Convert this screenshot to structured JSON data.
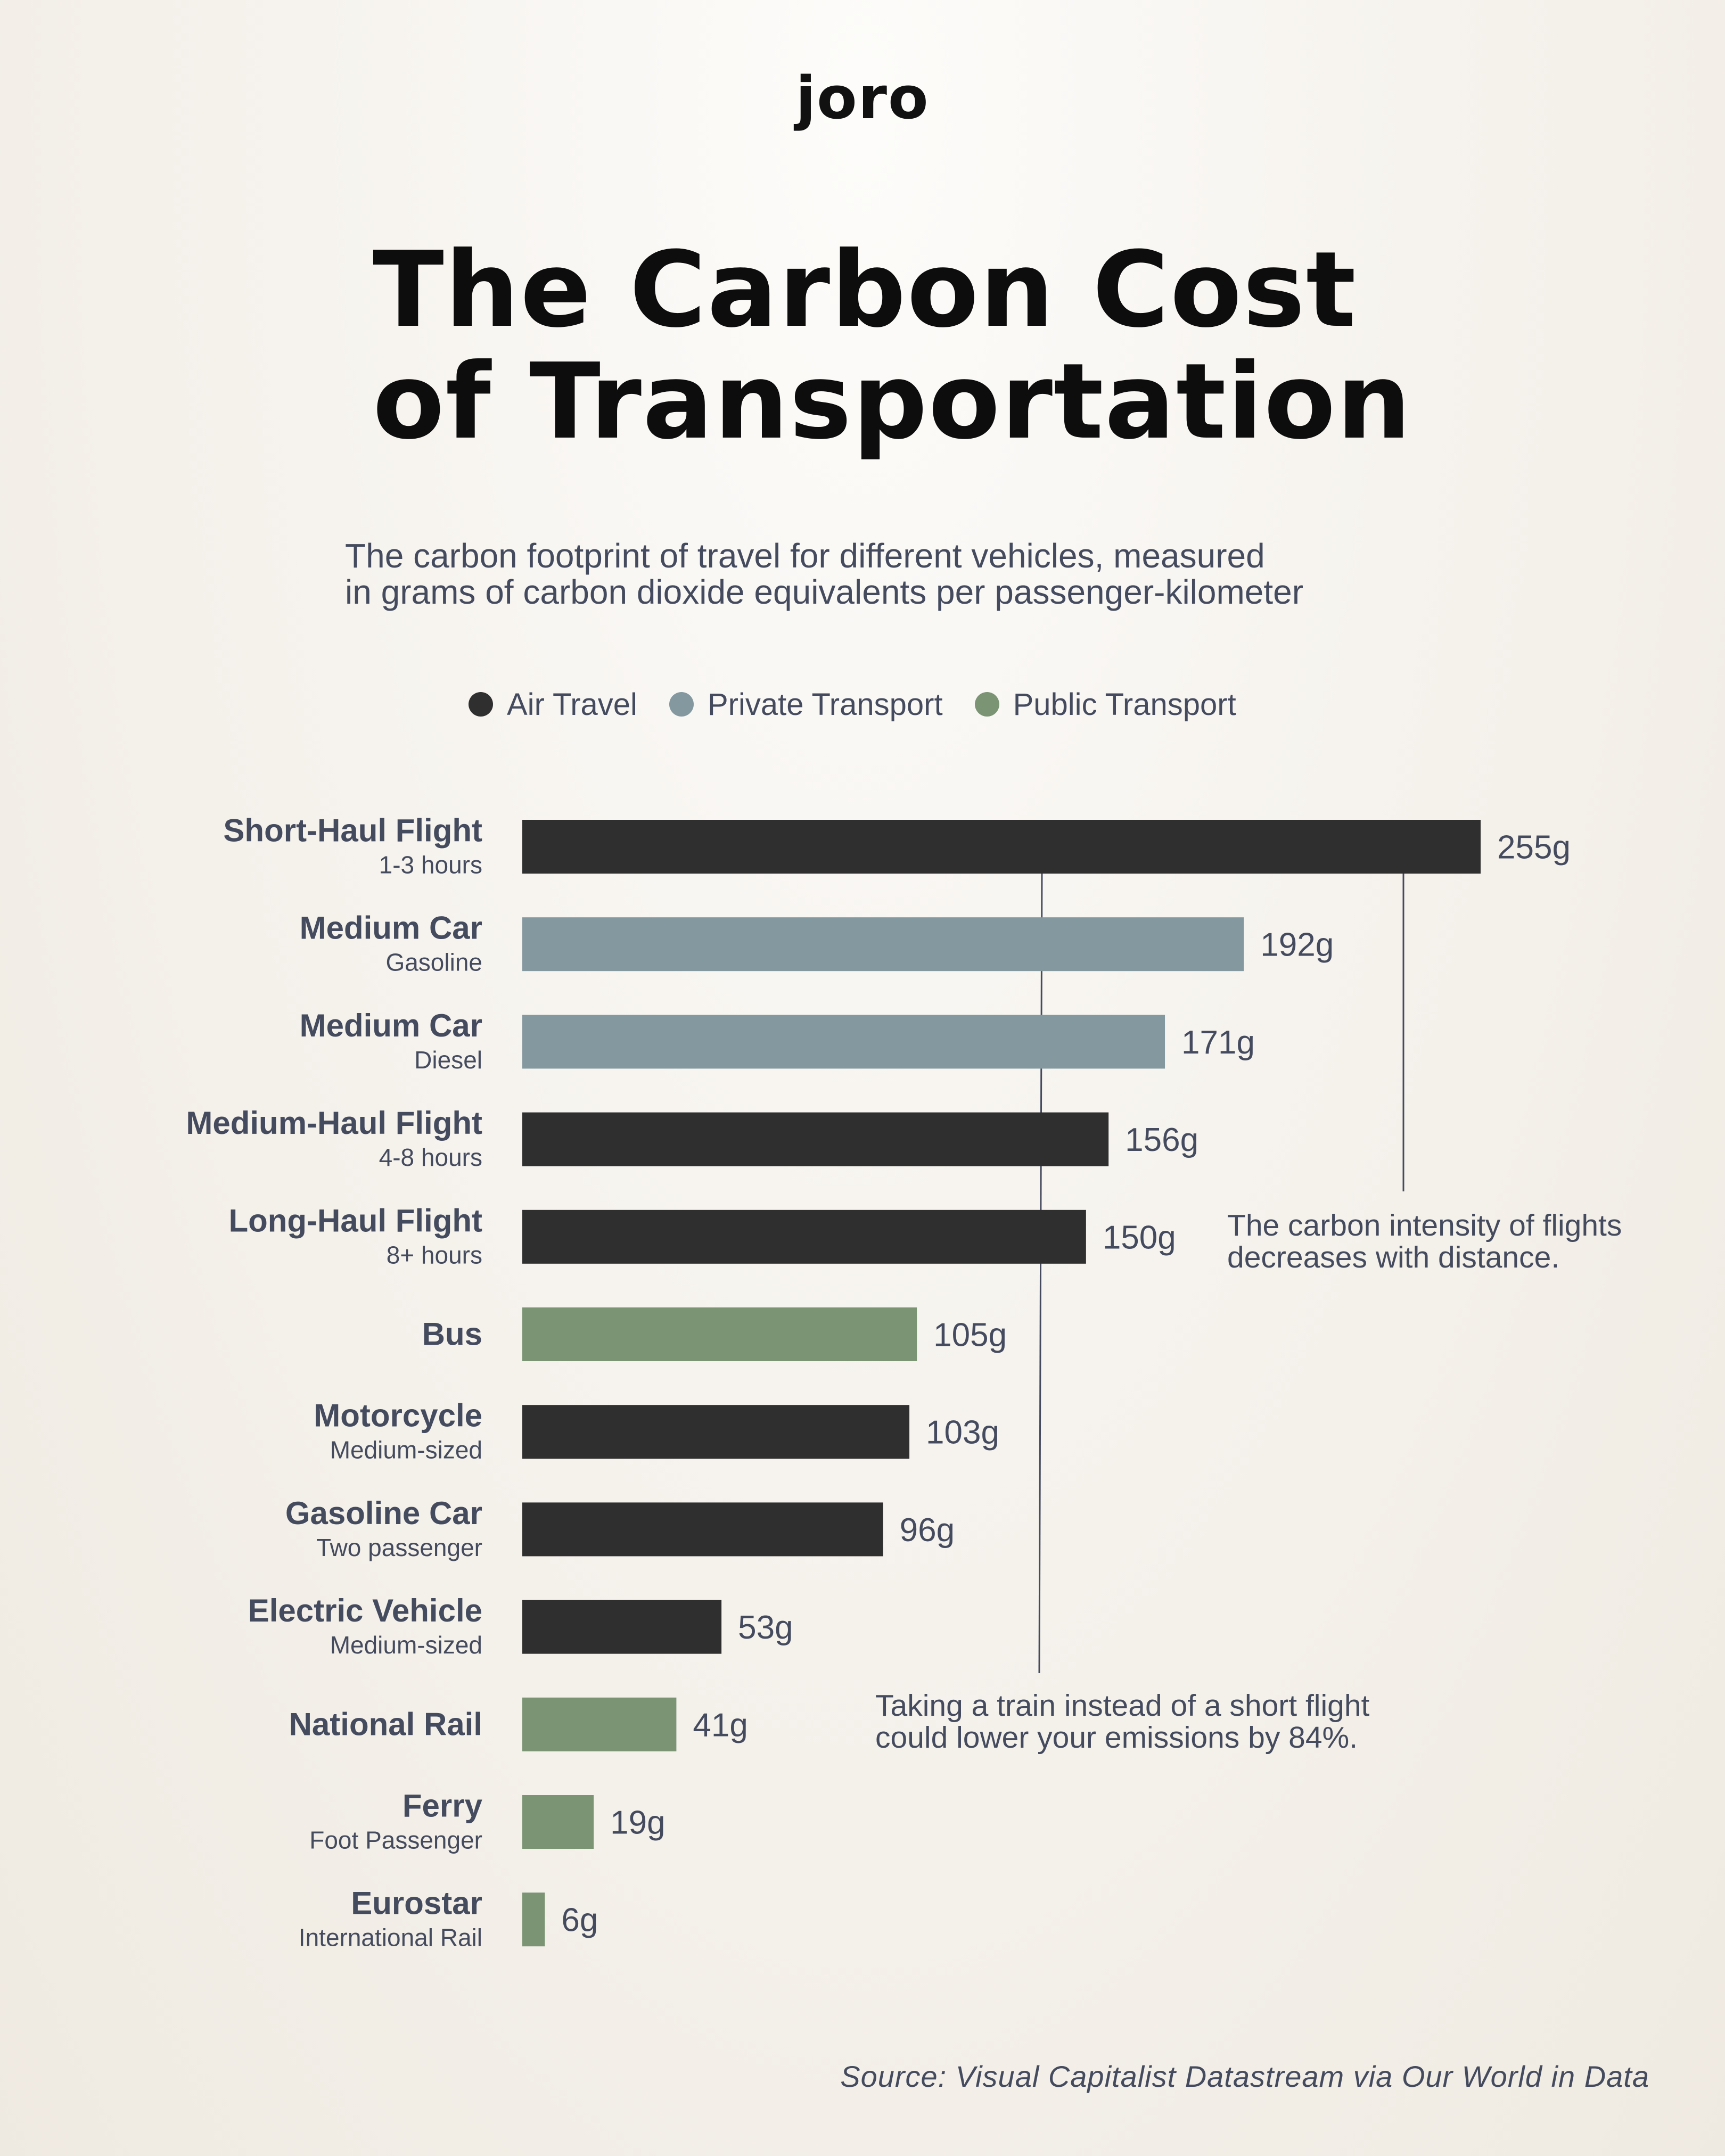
{
  "brand": {
    "logo": "joro"
  },
  "header": {
    "title_line1": "The Carbon Cost",
    "title_line2": "of Transportation",
    "subtitle_line1": "The carbon footprint of travel for different vehicles, measured",
    "subtitle_line2": "in grams of carbon dioxide equivalents per passenger-kilometer"
  },
  "legend": [
    {
      "label": "Air Travel",
      "color": "#2f2f2f"
    },
    {
      "label": "Private Transport",
      "color": "#83989f"
    },
    {
      "label": "Public Transport",
      "color": "#7b9474"
    }
  ],
  "chart_data": {
    "type": "bar",
    "orientation": "horizontal",
    "title": "The Carbon Cost of Transportation",
    "unit": "g CO2e per passenger-km",
    "xlim": [
      0,
      255
    ],
    "grid": false,
    "legend_position": "top",
    "categories": [
      {
        "name": "Short-Haul Flight",
        "sub": "1-3 hours",
        "value": 255,
        "label": "255g",
        "color": "#2f2f2f"
      },
      {
        "name": "Medium Car",
        "sub": "Gasoline",
        "value": 192,
        "label": "192g",
        "color": "#83989f"
      },
      {
        "name": "Medium Car",
        "sub": "Diesel",
        "value": 171,
        "label": "171g",
        "color": "#83989f"
      },
      {
        "name": "Medium-Haul Flight",
        "sub": "4-8 hours",
        "value": 156,
        "label": "156g",
        "color": "#2f2f2f"
      },
      {
        "name": "Long-Haul Flight",
        "sub": "8+ hours",
        "value": 150,
        "label": "150g",
        "color": "#2f2f2f"
      },
      {
        "name": "Bus",
        "sub": "",
        "value": 105,
        "label": "105g",
        "color": "#7b9474"
      },
      {
        "name": "Motorcycle",
        "sub": "Medium-sized",
        "value": 103,
        "label": "103g",
        "color": "#2f2f2f"
      },
      {
        "name": "Gasoline Car",
        "sub": "Two passenger",
        "value": 96,
        "label": "96g",
        "color": "#2f2f2f"
      },
      {
        "name": "Electric Vehicle",
        "sub": "Medium-sized",
        "value": 53,
        "label": "53g",
        "color": "#2f2f2f"
      },
      {
        "name": "National Rail",
        "sub": "",
        "value": 41,
        "label": "41g",
        "color": "#7b9474"
      },
      {
        "name": "Ferry",
        "sub": "Foot Passenger",
        "value": 19,
        "label": "19g",
        "color": "#7b9474"
      },
      {
        "name": "Eurostar",
        "sub": "International Rail",
        "value": 6,
        "label": "6g",
        "color": "#7b9474"
      }
    ]
  },
  "annotations": {
    "flights_line1": "The carbon intensity of flights",
    "flights_line2": "decreases with distance.",
    "train_line1": "Taking a train instead of a short flight",
    "train_line2": "could lower your emissions by 84%."
  },
  "footer": {
    "source": "Source: Visual Capitalist Datastream via Our World in Data"
  }
}
